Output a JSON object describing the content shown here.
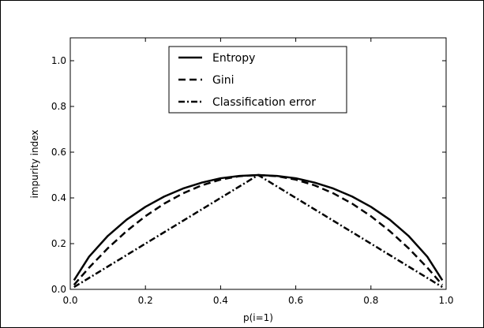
{
  "chart_data": {
    "type": "line",
    "title": "",
    "xlabel": "p(i=1)",
    "ylabel": "impurity index",
    "xlim": [
      0.0,
      1.0
    ],
    "ylim": [
      0.0,
      1.1
    ],
    "x_ticks": [
      0.0,
      0.2,
      0.4,
      0.6,
      0.8,
      1.0
    ],
    "x_tick_labels": [
      "0.0",
      "0.2",
      "0.4",
      "0.6",
      "0.8",
      "1.0"
    ],
    "y_ticks": [
      0.0,
      0.2,
      0.4,
      0.6,
      0.8,
      1.0
    ],
    "y_tick_labels": [
      "0.0",
      "0.2",
      "0.4",
      "0.6",
      "0.8",
      "1.0"
    ],
    "grid": false,
    "legend_position": "upper-center",
    "x": [
      0.01,
      0.05,
      0.1,
      0.15,
      0.2,
      0.25,
      0.3,
      0.35,
      0.4,
      0.45,
      0.5,
      0.55,
      0.6,
      0.65,
      0.7,
      0.75,
      0.8,
      0.85,
      0.9,
      0.95,
      0.99
    ],
    "series": [
      {
        "name": "Entropy",
        "style": "solid",
        "values": [
          0.04,
          0.143,
          0.234,
          0.305,
          0.361,
          0.406,
          0.441,
          0.467,
          0.486,
          0.496,
          0.5,
          0.496,
          0.486,
          0.467,
          0.441,
          0.406,
          0.361,
          0.305,
          0.234,
          0.143,
          0.04
        ]
      },
      {
        "name": "Gini",
        "style": "dashed",
        "values": [
          0.0198,
          0.095,
          0.18,
          0.255,
          0.32,
          0.375,
          0.42,
          0.455,
          0.48,
          0.495,
          0.5,
          0.495,
          0.48,
          0.455,
          0.42,
          0.375,
          0.32,
          0.255,
          0.18,
          0.095,
          0.0198
        ]
      },
      {
        "name": "Classification error",
        "style": "dash-dot",
        "values": [
          0.01,
          0.05,
          0.1,
          0.15,
          0.2,
          0.25,
          0.3,
          0.35,
          0.4,
          0.45,
          0.5,
          0.45,
          0.4,
          0.35,
          0.3,
          0.25,
          0.2,
          0.15,
          0.1,
          0.05,
          0.01
        ]
      }
    ],
    "colors": {
      "Entropy": "#000000",
      "Gini": "#000000",
      "Classification error": "#000000"
    }
  }
}
